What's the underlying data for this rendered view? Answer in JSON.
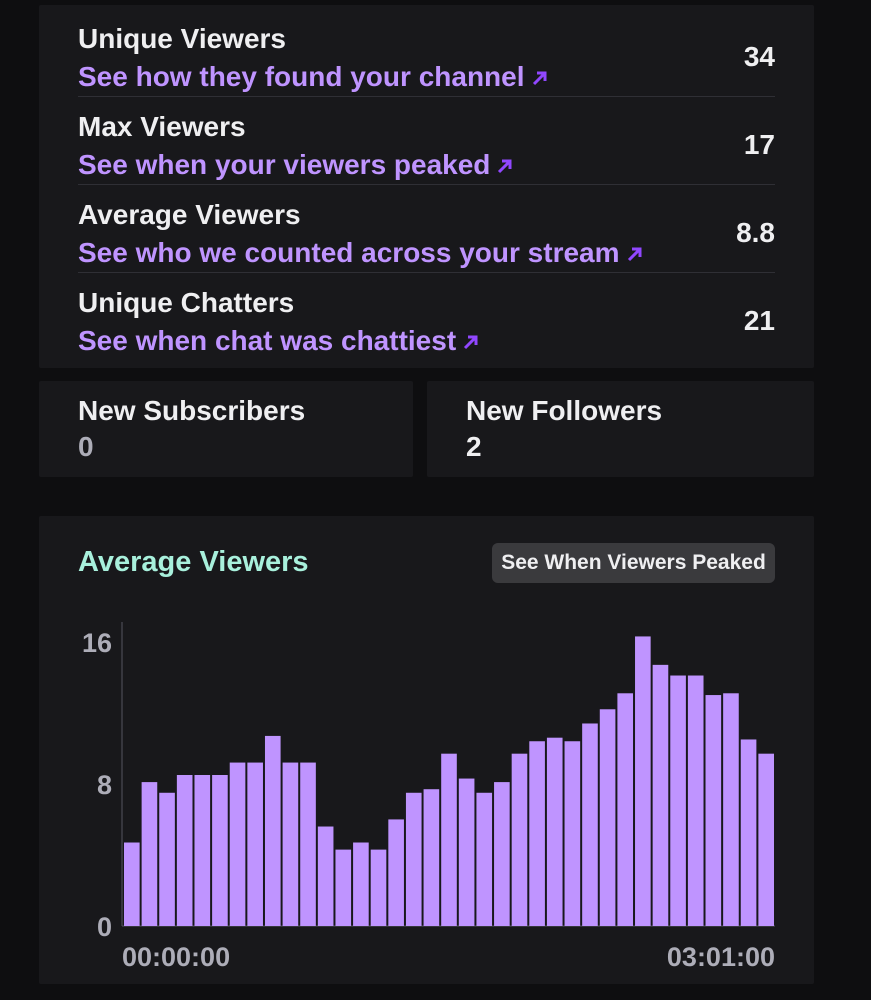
{
  "stats": [
    {
      "title": "Unique Viewers",
      "link": "See how they found your channel",
      "value": "34"
    },
    {
      "title": "Max Viewers",
      "link": "See when your viewers peaked",
      "value": "17"
    },
    {
      "title": "Average Viewers",
      "link": "See who we counted across your stream",
      "value": "8.8"
    },
    {
      "title": "Unique Chatters",
      "link": "See when chat was chattiest",
      "value": "21"
    }
  ],
  "subscribers": {
    "title": "New Subscribers",
    "value": "0"
  },
  "followers": {
    "title": "New Followers",
    "value": "2"
  },
  "chart_section": {
    "title": "Average Viewers",
    "button": "See When Viewers Peaked"
  },
  "colors": {
    "accent": "#bf94ff",
    "bar": "#bf94ff",
    "chart_title": "#a8f0dc",
    "panel": "#18181b",
    "background": "#0e0e10"
  },
  "chart_data": {
    "type": "bar",
    "title": "Average Viewers",
    "ylim": [
      0,
      17
    ],
    "yticks": [
      0,
      8,
      16
    ],
    "x_tick_labels": [
      "00:00:00",
      "03:01:00"
    ],
    "grid": false,
    "values": [
      4.7,
      8.1,
      7.5,
      8.5,
      8.5,
      8.5,
      9.2,
      9.2,
      10.7,
      9.2,
      9.2,
      5.6,
      4.3,
      4.7,
      4.3,
      6.0,
      7.5,
      7.7,
      9.7,
      8.3,
      7.5,
      8.1,
      9.7,
      10.4,
      10.6,
      10.4,
      11.4,
      12.2,
      13.1,
      16.3,
      14.7,
      14.1,
      14.1,
      13.0,
      13.1,
      10.5,
      9.7
    ]
  }
}
